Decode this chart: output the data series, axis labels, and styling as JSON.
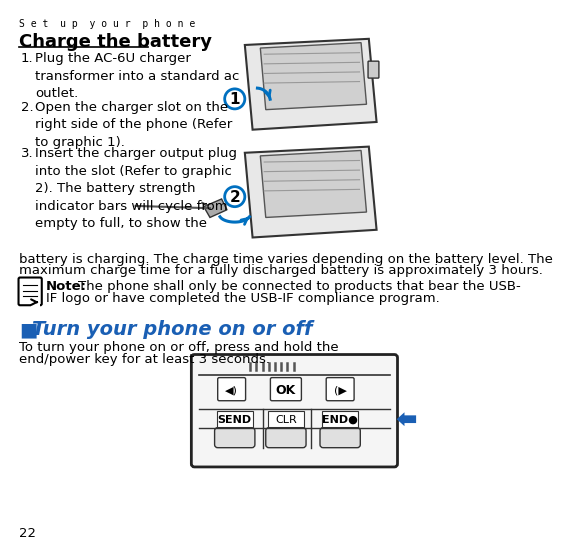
{
  "page_number": "22",
  "header": "S e t  u p  y o u r  p h o n e",
  "section1_title": "Charge the battery",
  "note_label": "Note:",
  "note_text": "The phone shall only be connected to products that bear the USB-\nIF logo or have completed the USB-IF compliance program.",
  "section2_title": "Turn your phone on or off",
  "section2_bullet": "■",
  "bg_color": "#ffffff",
  "text_color": "#000000",
  "header_color": "#000000",
  "section2_title_color": "#1a5fb4",
  "arrow_color": "#1a5fb4",
  "step1_num": "1.",
  "step1_text": "Plug the AC-6U charger\ntransformer into a standard ac\noutlet.",
  "step2_num": "2.",
  "step2_text": "Open the charger slot on the\nright side of the phone (Refer\nto graphic 1).",
  "step3_num": "3.",
  "step3_text_left": "Insert the charger output plug\ninto the slot (Refer to graphic\n2). The battery strength\nindicator bars will cycle from\nempty to full, to show the",
  "step3_cont1": "battery is charging. The charge time varies depending on the battery level. The",
  "step3_cont2": "maximum charge time for a fully discharged battery is approximately 3 hours.",
  "sec2_text1": "To turn your phone on or off, press and hold the",
  "sec2_text2": "end/power key for at least 3 seconds."
}
